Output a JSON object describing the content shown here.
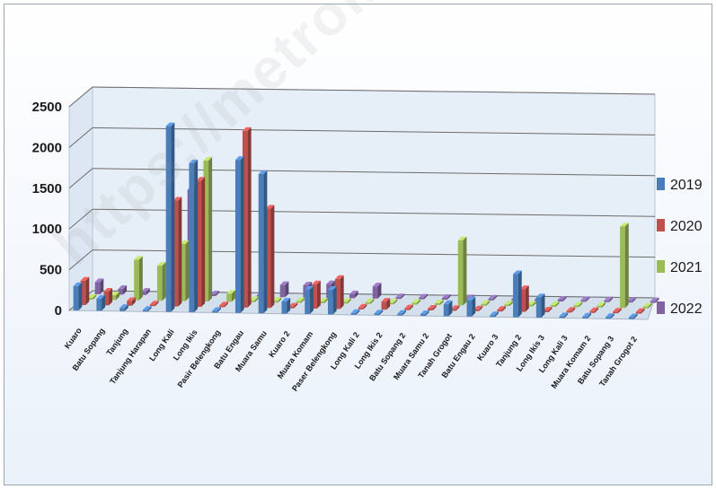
{
  "chart_data": {
    "type": "bar",
    "title": "",
    "xlabel": "",
    "ylabel": "",
    "ylim": [
      0,
      2500
    ],
    "yticks": [
      "0",
      "500",
      "1000",
      "1500",
      "2000",
      "2500"
    ],
    "grid": true,
    "legend_position": "right",
    "categories": [
      "Kuaro",
      "Batu Sopang",
      "Tanjung",
      "Tanjung Harapan",
      "Long Kali",
      "Long Ikis",
      "Pasir Belengkong",
      "Batu Engau",
      "Muara Samu",
      "Kuaro 2",
      "Muara Komam",
      "Paser Belengkong",
      "Long Kali 2",
      "Long Ikis 2",
      "Batu Sopang 2",
      "Muara Samu 2",
      "Tanah Grogot",
      "Batu Engau 2",
      "Kuaro 3",
      "Tanjung 2",
      "Long Ikis 3",
      "Long Kali 3",
      "Muara Komam 2",
      "Batu Sopang 3",
      "Tanah Grogot 2"
    ],
    "series": [
      {
        "name": "2019",
        "color": "#4a7ebb",
        "values": [
          300,
          150,
          40,
          0,
          2280,
          1830,
          0,
          1880,
          1710,
          150,
          300,
          300,
          0,
          0,
          0,
          0,
          150,
          200,
          0,
          530,
          250,
          0,
          0,
          0,
          0
        ]
      },
      {
        "name": "2020",
        "color": "#c0504d",
        "values": [
          300,
          170,
          60,
          10,
          1300,
          1550,
          0,
          2170,
          1220,
          0,
          300,
          370,
          0,
          100,
          0,
          0,
          0,
          0,
          0,
          280,
          0,
          0,
          0,
          0,
          0
        ]
      },
      {
        "name": "2021",
        "color": "#9bbb59",
        "values": [
          0,
          60,
          500,
          430,
          700,
          1730,
          100,
          0,
          0,
          0,
          0,
          0,
          0,
          0,
          0,
          0,
          800,
          0,
          0,
          0,
          0,
          0,
          0,
          1000,
          0
        ]
      },
      {
        "name": "2022",
        "color": "#8064a2",
        "values": [
          150,
          70,
          40,
          20,
          1300,
          0,
          0,
          0,
          150,
          150,
          170,
          50,
          150,
          0,
          0,
          0,
          0,
          0,
          0,
          0,
          0,
          0,
          0,
          0,
          0
        ]
      }
    ]
  },
  "watermark": "https://metrokota.bps.go.id"
}
